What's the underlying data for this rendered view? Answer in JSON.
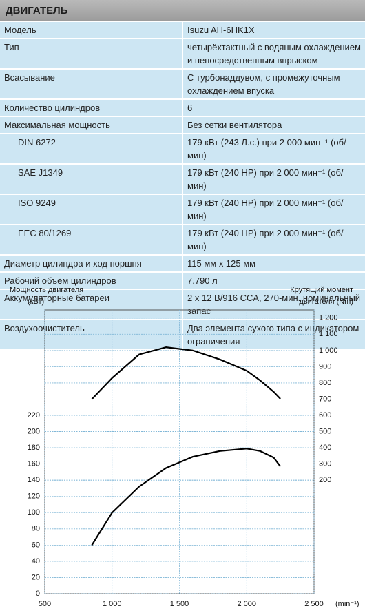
{
  "table": {
    "title": "ДВИГАТЕЛЬ",
    "rows": [
      {
        "label": "Модель",
        "value": "Isuzu AH-6HK1X"
      },
      {
        "label": "Тип",
        "value": "четырёхтактный с водяным охлаждением и непосредственным впрыском"
      },
      {
        "label": "Всасывание",
        "value": "С турбонаддувом, с промежуточным охлаждением впуска"
      },
      {
        "label": "Количество цилиндров",
        "value": "6"
      },
      {
        "label": "Максимальная мощность",
        "value": "Без сетки вентилятора",
        "items": [
          {
            "label": "DIN 6272",
            "value": "179 кВт (243 Л.с.) при 2 000 мин⁻¹ (об/мин)"
          },
          {
            "label": "SAE J1349",
            "value": "179 кВт (240 HP) при 2 000 мин⁻¹ (об/мин)"
          },
          {
            "label": "ISO 9249",
            "value": "179 кВт (240 HP) при 2 000 мин⁻¹ (об/мин)"
          },
          {
            "label": "EEC 80/1269",
            "value": "179 кВт (240 HP) при 2 000 мин⁻¹ (об/мин)"
          }
        ]
      },
      {
        "label": "Диаметр цилиндра и ход поршня",
        "value": "115 мм х 125 мм"
      },
      {
        "label": "Рабочий объём цилиндров",
        "value": "7.790 л"
      },
      {
        "label": "Аккумуляторные батареи",
        "value": "2 x 12 В/916 CCA, 270-мин. номинальный запас"
      },
      {
        "label": "Воздухоочиститель",
        "value": "Два элемента сухого типа с индикатором ограничения"
      }
    ]
  },
  "chart_data": {
    "type": "line",
    "ylabel": [
      "Мощность двигателя",
      "(кВт)"
    ],
    "y2label": [
      "Крутящий момент",
      "двигателя (Nm)"
    ],
    "xlabel": "(min⁻¹)",
    "xlim": [
      500,
      2500
    ],
    "xticks": [
      500,
      {
        "value": 1000,
        "label": "1 000"
      },
      {
        "value": 1500,
        "label": "1 500"
      },
      {
        "value": 2000,
        "label": "2 000"
      },
      {
        "value": 2500,
        "label": "2 500"
      }
    ],
    "ylim": [
      0,
      350
    ],
    "yticks": [
      0,
      20,
      40,
      60,
      80,
      100,
      120,
      140,
      160,
      180,
      200,
      220
    ],
    "y2lim": [
      -500,
      1250
    ],
    "y2ticks": [
      200,
      300,
      400,
      500,
      600,
      700,
      800,
      900,
      {
        "value": 1000,
        "label": "1 000"
      },
      {
        "value": 1100,
        "label": "1 100"
      },
      {
        "value": 1200,
        "label": "1 200"
      }
    ],
    "grid": true,
    "x": [
      850,
      1000,
      1200,
      1400,
      1600,
      1800,
      2000,
      2100,
      2200,
      2250
    ],
    "series": [
      {
        "color": "#000000",
        "values": [
          60,
          100,
          132,
          155,
          169,
          176,
          179,
          176,
          168,
          157
        ]
      },
      {
        "color": "#000000",
        "axis": "y2",
        "values": [
          700,
          830,
          975,
          1020,
          1000,
          945,
          875,
          815,
          745,
          702
        ]
      }
    ]
  }
}
